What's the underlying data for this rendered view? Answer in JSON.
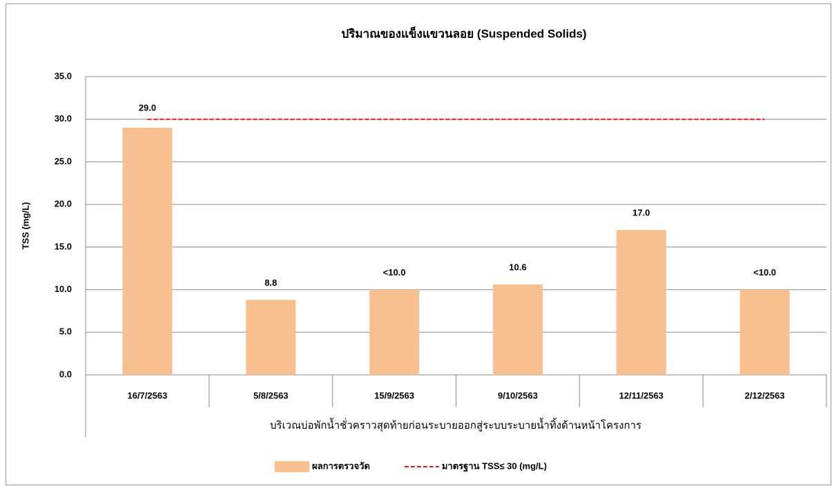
{
  "chart_data": {
    "type": "bar",
    "title": "ปริมาณของแข็งแขวนลอย (Suspended Solids)",
    "ylabel": "TSS (mg/L)",
    "xlabel": "บริเวณบ่อพักน้ำชั่วคราวสุดท้ายก่อนระบายออกสู่ระบบระบายน้ำทิ้งด้านหน้าโครงการ",
    "categories": [
      "16/7/2563",
      "5/8/2563",
      "15/9/2563",
      "9/10/2563",
      "12/11/2563",
      "2/12/2563"
    ],
    "series": [
      {
        "name": "ผลการตรวจวัด",
        "color": "#f9c08f",
        "type": "bar",
        "values": [
          29.0,
          8.8,
          10,
          10.6,
          17.0,
          10
        ],
        "value_labels": [
          "29.0",
          "8.8",
          "<10.0",
          "10.6",
          "17.0",
          "<10.0"
        ]
      },
      {
        "name": "มาตรฐาน TSS≤ 30 (mg/L)",
        "color": "#e31a1c",
        "type": "line",
        "dashed": true,
        "values": [
          30,
          30,
          30,
          30,
          30,
          30
        ]
      }
    ],
    "ylim": [
      0,
      35
    ],
    "yticks": [
      {
        "value": 0,
        "label": "0.0"
      },
      {
        "value": 5,
        "label": "5.0"
      },
      {
        "value": 10,
        "label": "10.0"
      },
      {
        "value": 15,
        "label": "15.0"
      },
      {
        "value": 20,
        "label": "20.0"
      },
      {
        "value": 25,
        "label": "25.0"
      },
      {
        "value": 30,
        "label": "30.0"
      },
      {
        "value": 35,
        "label": "35.0"
      }
    ],
    "grid": true,
    "legend": "bottom"
  }
}
